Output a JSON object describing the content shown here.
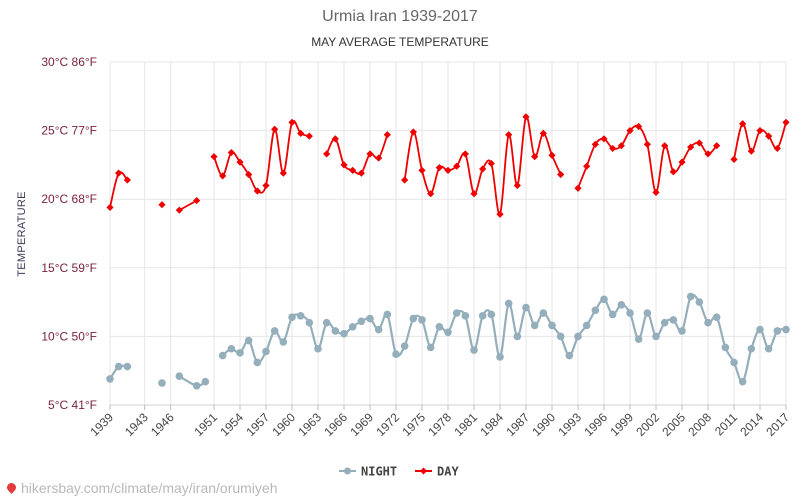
{
  "title": "Urmia Iran 1939-2017",
  "subtitle": "MAY AVERAGE TEMPERATURE",
  "watermark": "hikersbay.com/climate/may/iran/orumiyeh",
  "colors": {
    "night": "#94afbb",
    "day": "#ee0000",
    "grid": "#e6e6e6"
  },
  "chart_data": {
    "type": "line",
    "ylabel": "TEMPERATURE",
    "ylim": [
      5,
      30
    ],
    "yticks": [
      {
        "value": 30,
        "label": "30°C 86°F"
      },
      {
        "value": 25,
        "label": "25°C 77°F"
      },
      {
        "value": 20,
        "label": "20°C 68°F"
      },
      {
        "value": 15,
        "label": "15°C 59°F"
      },
      {
        "value": 10,
        "label": "10°C 50°F"
      },
      {
        "value": 5,
        "label": "5°C 41°F"
      }
    ],
    "xlim": [
      1939,
      2017
    ],
    "xticks": [
      1939,
      1943,
      1946,
      1951,
      1954,
      1957,
      1960,
      1963,
      1966,
      1969,
      1972,
      1975,
      1978,
      1981,
      1984,
      1987,
      1990,
      1993,
      1996,
      1999,
      2002,
      2005,
      2008,
      2011,
      2014,
      2017
    ],
    "legend": "bottom-center",
    "grid": true,
    "series": [
      {
        "name": "NIGHT",
        "x": [
          1939,
          1940,
          1941,
          1943,
          1945,
          1946,
          1947,
          1949,
          1950,
          1951,
          1952,
          1953,
          1954,
          1955,
          1956,
          1957,
          1958,
          1959,
          1960,
          1961,
          1962,
          1963,
          1964,
          1965,
          1966,
          1967,
          1968,
          1969,
          1970,
          1971,
          1972,
          1973,
          1974,
          1975,
          1976,
          1977,
          1978,
          1979,
          1980,
          1981,
          1982,
          1983,
          1984,
          1985,
          1986,
          1987,
          1988,
          1989,
          1990,
          1991,
          1992,
          1993,
          1994,
          1995,
          1996,
          1997,
          1998,
          1999,
          2000,
          2001,
          2002,
          2003,
          2004,
          2005,
          2006,
          2007,
          2008,
          2009,
          2010,
          2011,
          2012,
          2013,
          2014,
          2015,
          2016,
          2017
        ],
        "values": [
          6.9,
          7.8,
          7.8,
          null,
          6.6,
          null,
          7.1,
          6.4,
          6.7,
          null,
          8.6,
          9.1,
          8.8,
          9.7,
          8.1,
          8.9,
          10.4,
          9.6,
          11.4,
          11.5,
          11.0,
          9.1,
          11.0,
          10.4,
          10.2,
          10.7,
          11.1,
          11.3,
          10.5,
          11.6,
          8.7,
          9.3,
          11.3,
          11.2,
          9.2,
          10.7,
          10.3,
          11.7,
          11.5,
          9.0,
          11.5,
          11.6,
          8.5,
          12.4,
          10.0,
          12.1,
          10.8,
          11.7,
          10.8,
          10.0,
          8.6,
          10.0,
          10.8,
          11.9,
          12.7,
          11.6,
          12.3,
          11.7,
          9.8,
          11.7,
          10.0,
          11.0,
          11.2,
          10.4,
          12.9,
          12.5,
          11.0,
          11.4,
          9.2,
          8.1,
          6.7,
          9.1,
          10.5,
          9.1,
          10.4,
          10.5
        ]
      },
      {
        "name": "DAY",
        "x": [
          1939,
          1940,
          1941,
          1943,
          1945,
          1946,
          1947,
          1949,
          1950,
          1951,
          1952,
          1953,
          1954,
          1955,
          1956,
          1957,
          1958,
          1959,
          1960,
          1961,
          1962,
          1963,
          1964,
          1965,
          1966,
          1967,
          1968,
          1969,
          1970,
          1971,
          1972,
          1973,
          1974,
          1975,
          1976,
          1977,
          1978,
          1979,
          1980,
          1981,
          1982,
          1983,
          1984,
          1985,
          1986,
          1987,
          1988,
          1989,
          1990,
          1991,
          1992,
          1993,
          1994,
          1995,
          1996,
          1997,
          1998,
          1999,
          2000,
          2001,
          2002,
          2003,
          2004,
          2005,
          2006,
          2007,
          2008,
          2009,
          2010,
          2011,
          2012,
          2013,
          2014,
          2015,
          2016,
          2017
        ],
        "values": [
          19.4,
          21.9,
          21.4,
          null,
          19.6,
          null,
          19.2,
          19.9,
          null,
          23.1,
          21.7,
          23.4,
          22.7,
          21.8,
          20.6,
          21.0,
          25.1,
          21.9,
          25.6,
          24.8,
          24.6,
          null,
          23.3,
          24.4,
          22.5,
          22.1,
          21.9,
          23.3,
          23.0,
          24.7,
          null,
          21.4,
          24.9,
          22.1,
          20.4,
          22.3,
          22.1,
          22.4,
          23.3,
          20.4,
          22.2,
          22.6,
          18.9,
          24.7,
          21.0,
          26.0,
          23.1,
          24.8,
          23.2,
          21.8,
          null,
          20.8,
          22.4,
          24.0,
          24.4,
          23.7,
          23.9,
          25.0,
          25.3,
          24.0,
          20.5,
          23.9,
          22.0,
          22.7,
          23.8,
          24.1,
          23.3,
          23.9,
          null,
          22.9,
          25.5,
          23.5,
          25.0,
          24.6,
          23.7,
          25.6
        ]
      }
    ]
  }
}
